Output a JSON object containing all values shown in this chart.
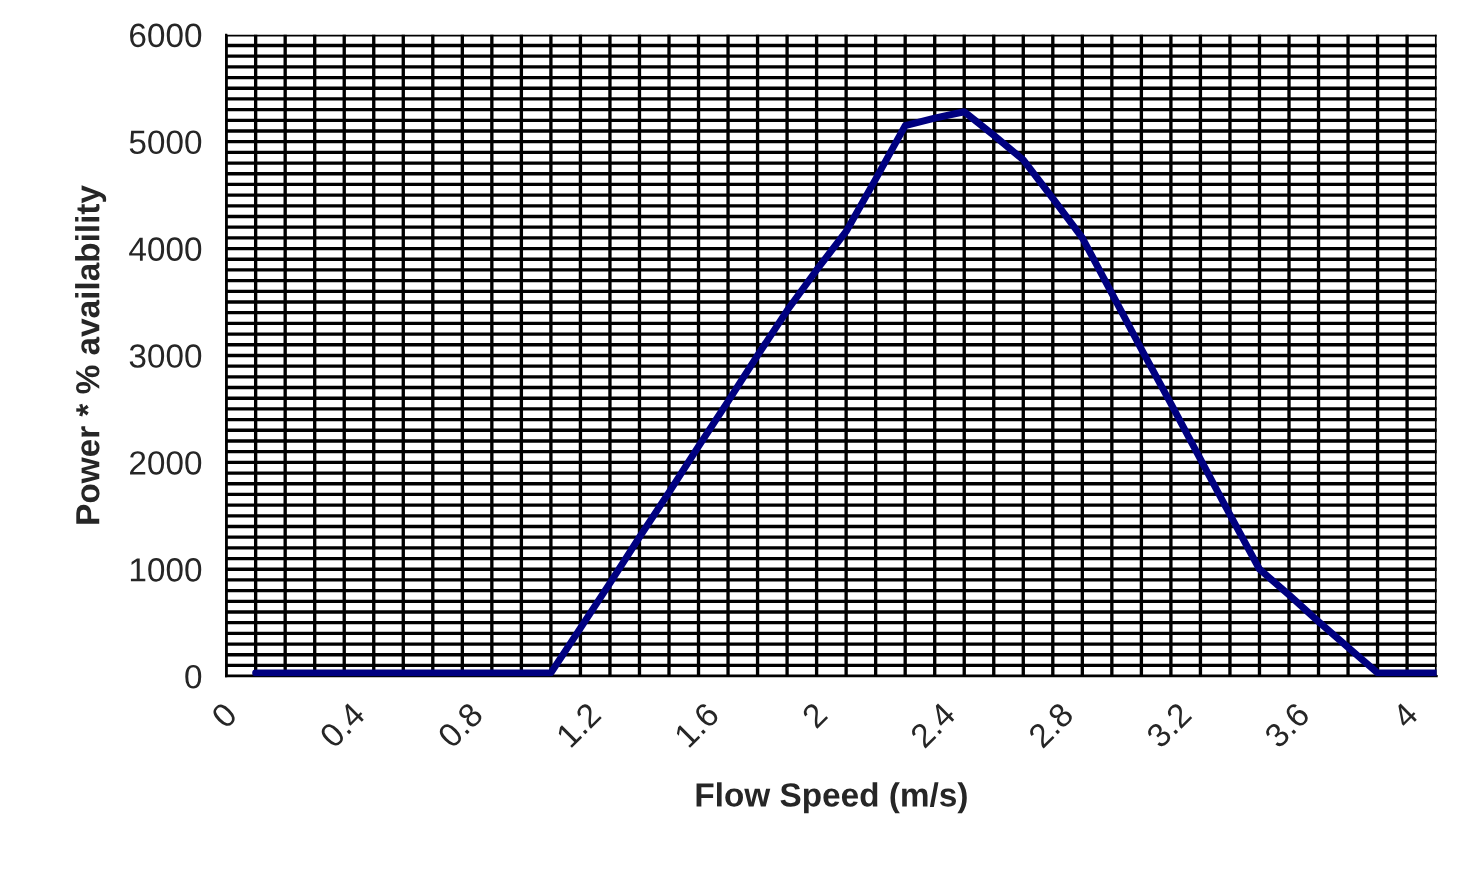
{
  "chart_data": {
    "type": "line",
    "xlabel": "Flow Speed (m/s)",
    "ylabel": "Power * % availability",
    "x": [
      0.1,
      0.2,
      0.3,
      0.4,
      0.5,
      0.6,
      0.7,
      0.8,
      0.9,
      1.0,
      1.1,
      1.2,
      1.3,
      1.4,
      1.5,
      1.6,
      1.7,
      1.8,
      1.9,
      2.0,
      2.1,
      2.2,
      2.3,
      2.4,
      2.5,
      2.6,
      2.7,
      2.8,
      2.9,
      3.0,
      3.1,
      3.2,
      3.3,
      3.4,
      3.5,
      3.6,
      3.7,
      3.8,
      3.9,
      4.0,
      4.1
    ],
    "series": [
      {
        "color": "#000080",
        "values": [
          30,
          30,
          30,
          30,
          30,
          30,
          30,
          30,
          30,
          30,
          30,
          450,
          870,
          1300,
          1720,
          2150,
          2570,
          3000,
          3420,
          3800,
          4160,
          4650,
          5150,
          5220,
          5280,
          5060,
          4830,
          4470,
          4100,
          3580,
          3060,
          2550,
          2030,
          1510,
          1000,
          760,
          510,
          270,
          30,
          30,
          30
        ]
      }
    ],
    "xlim": [
      0,
      4.1
    ],
    "xticks": [
      0,
      {
        "value": 0.2,
        "label": null
      },
      0.4,
      {
        "value": 0.6,
        "label": null
      },
      0.8,
      {
        "value": 1.0,
        "label": null
      },
      1.2,
      {
        "value": 1.4,
        "label": null
      },
      1.6,
      {
        "value": 1.8,
        "label": null
      },
      2,
      {
        "value": 2.2,
        "label": null
      },
      2.4,
      {
        "value": 2.6,
        "label": null
      },
      2.8,
      {
        "value": 3.0,
        "label": null
      },
      3.2,
      {
        "value": 3.4,
        "label": null
      },
      3.6,
      {
        "value": 3.8,
        "label": null
      },
      4
    ],
    "ylim": [
      0,
      6000
    ],
    "yticks": [
      0,
      1000,
      2000,
      3000,
      4000,
      5000,
      6000
    ],
    "grid": true,
    "legend": false,
    "marker": "none",
    "line_style": "solid"
  }
}
